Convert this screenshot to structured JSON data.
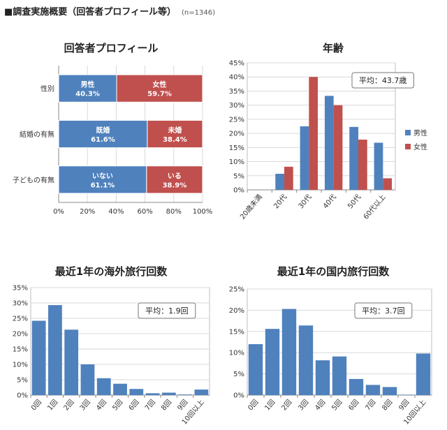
{
  "header": {
    "title": "■調査実施概要（回答者プロフィール等）",
    "note": "(n=1346)"
  },
  "chart_data": [
    {
      "type": "bar",
      "orientation": "horizontal-stacked",
      "title": "回答者プロフィール",
      "xlim": [
        0,
        100
      ],
      "x_ticks": [
        "0%",
        "20%",
        "40%",
        "60%",
        "80%",
        "100%"
      ],
      "rows": [
        {
          "label": "性別",
          "segments": [
            {
              "name": "男性",
              "value": 40.3,
              "text": "40.3%",
              "color": "#4f81bd"
            },
            {
              "name": "女性",
              "value": 59.7,
              "text": "59.7%",
              "color": "#c0504d"
            }
          ]
        },
        {
          "label": "結婚の有無",
          "segments": [
            {
              "name": "既婚",
              "value": 61.6,
              "text": "61.6%",
              "color": "#4f81bd"
            },
            {
              "name": "未婚",
              "value": 38.4,
              "text": "38.4%",
              "color": "#c0504d"
            }
          ]
        },
        {
          "label": "子どもの有無",
          "segments": [
            {
              "name": "いない",
              "value": 61.1,
              "text": "61.1%",
              "color": "#4f81bd"
            },
            {
              "name": "いる",
              "value": 38.9,
              "text": "38.9%",
              "color": "#c0504d"
            }
          ]
        }
      ]
    },
    {
      "type": "bar",
      "title": "年齢",
      "categories": [
        "20歳未満",
        "20代",
        "30代",
        "40代",
        "50代",
        "60代以上"
      ],
      "series": [
        {
          "name": "男性",
          "color": "#4f81bd",
          "values": [
            0,
            5.7,
            22.5,
            33.3,
            22.3,
            16.7
          ]
        },
        {
          "name": "女性",
          "color": "#c0504d",
          "values": [
            0,
            8.2,
            40.0,
            30.0,
            17.8,
            4.1
          ]
        }
      ],
      "ylim": [
        0,
        45
      ],
      "y_ticks": [
        "0%",
        "5%",
        "10%",
        "15%",
        "20%",
        "25%",
        "30%",
        "35%",
        "40%",
        "45%"
      ],
      "annotation": "平均：43.7歳",
      "legend": "right"
    },
    {
      "type": "bar",
      "title": "最近1年の海外旅行回数",
      "categories": [
        "0回",
        "1回",
        "2回",
        "3回",
        "4回",
        "5回",
        "6回",
        "7回",
        "8回",
        "9回",
        "10回以上"
      ],
      "series": [
        {
          "color": "#4f81bd",
          "values": [
            24.2,
            29.3,
            21.3,
            10.0,
            5.5,
            3.7,
            2.0,
            0.6,
            0.8,
            0.2,
            1.8
          ]
        }
      ],
      "ylim": [
        0,
        35
      ],
      "y_ticks": [
        "0%",
        "5%",
        "10%",
        "15%",
        "20%",
        "25%",
        "30%",
        "35%"
      ],
      "annotation": "平均：1.9回"
    },
    {
      "type": "bar",
      "title": "最近1年の国内旅行回数",
      "categories": [
        "0回",
        "1回",
        "2回",
        "3回",
        "4回",
        "5回",
        "6回",
        "7回",
        "8回",
        "9回",
        "10回以上"
      ],
      "series": [
        {
          "color": "#4f81bd",
          "values": [
            12.0,
            15.6,
            20.3,
            16.4,
            8.2,
            9.1,
            3.8,
            2.4,
            1.9,
            0.1,
            9.8
          ]
        }
      ],
      "ylim": [
        0,
        25
      ],
      "y_ticks": [
        "0%",
        "5%",
        "10%",
        "15%",
        "20%",
        "25%"
      ],
      "annotation": "平均：3.7回"
    }
  ]
}
